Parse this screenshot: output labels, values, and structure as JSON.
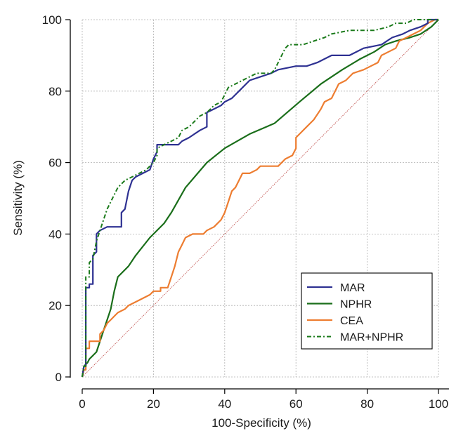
{
  "chart_data": {
    "type": "line",
    "title": "",
    "xlabel": "100-Specificity (%)",
    "ylabel": "Sensitivity (%)",
    "xlim": [
      0,
      100
    ],
    "ylim": [
      0,
      100
    ],
    "xticks": [
      "0",
      "20",
      "40",
      "60",
      "80",
      "100"
    ],
    "yticks": [
      "0",
      "20",
      "40",
      "60",
      "80",
      "100"
    ],
    "grid": true,
    "legend_position": "bottom-right",
    "reference_line": {
      "from": [
        0,
        0
      ],
      "to": [
        100,
        100
      ],
      "color": "#c0504d",
      "style": "dotted"
    },
    "series": [
      {
        "name": "MAR",
        "color": "#2e3192",
        "style": "step",
        "points": [
          [
            0,
            0
          ],
          [
            0.5,
            3
          ],
          [
            1,
            3
          ],
          [
            1,
            25
          ],
          [
            2,
            25
          ],
          [
            2,
            26
          ],
          [
            3,
            26
          ],
          [
            3,
            34
          ],
          [
            4,
            35
          ],
          [
            4,
            40
          ],
          [
            5,
            41
          ],
          [
            7,
            42
          ],
          [
            11,
            42
          ],
          [
            11,
            46
          ],
          [
            12,
            47
          ],
          [
            13,
            52
          ],
          [
            14,
            55
          ],
          [
            15,
            56
          ],
          [
            17,
            57
          ],
          [
            19,
            58
          ],
          [
            20,
            61
          ],
          [
            21,
            63
          ],
          [
            21,
            65
          ],
          [
            22,
            65
          ],
          [
            27,
            65
          ],
          [
            28,
            66
          ],
          [
            30,
            67
          ],
          [
            33,
            69
          ],
          [
            35,
            70
          ],
          [
            35,
            74
          ],
          [
            37,
            75
          ],
          [
            39,
            76
          ],
          [
            40,
            77
          ],
          [
            42,
            78
          ],
          [
            44,
            80
          ],
          [
            47,
            83
          ],
          [
            50,
            84
          ],
          [
            53,
            85
          ],
          [
            55,
            86
          ],
          [
            60,
            87
          ],
          [
            63,
            87
          ],
          [
            66,
            88
          ],
          [
            70,
            90
          ],
          [
            75,
            90
          ],
          [
            79,
            92
          ],
          [
            84,
            93
          ],
          [
            87,
            95
          ],
          [
            90,
            96
          ],
          [
            92,
            97
          ],
          [
            95,
            98
          ],
          [
            97,
            99
          ],
          [
            97,
            100
          ],
          [
            100,
            100
          ]
        ]
      },
      {
        "name": "NPHR",
        "color": "#1a6e1a",
        "style": "line",
        "points": [
          [
            0,
            0
          ],
          [
            0.5,
            3
          ],
          [
            1.5,
            4
          ],
          [
            2,
            5
          ],
          [
            3,
            6
          ],
          [
            4,
            7
          ],
          [
            5,
            10
          ],
          [
            6,
            13
          ],
          [
            7,
            16
          ],
          [
            8,
            19
          ],
          [
            9,
            24
          ],
          [
            10,
            28
          ],
          [
            13,
            31
          ],
          [
            15,
            34
          ],
          [
            19,
            39
          ],
          [
            23,
            43
          ],
          [
            25,
            46
          ],
          [
            29,
            53
          ],
          [
            35,
            60
          ],
          [
            40,
            64
          ],
          [
            47,
            68
          ],
          [
            54,
            71
          ],
          [
            61,
            77
          ],
          [
            67,
            82
          ],
          [
            73,
            86
          ],
          [
            78,
            89
          ],
          [
            82,
            91
          ],
          [
            85,
            93
          ],
          [
            88,
            94
          ],
          [
            92,
            95
          ],
          [
            95,
            96
          ],
          [
            98,
            98
          ],
          [
            100,
            100
          ]
        ]
      },
      {
        "name": "CEA",
        "color": "#ed7d31",
        "style": "step",
        "points": [
          [
            0,
            0
          ],
          [
            0.5,
            2
          ],
          [
            1,
            2
          ],
          [
            1,
            8
          ],
          [
            2,
            8
          ],
          [
            2,
            10
          ],
          [
            5,
            10
          ],
          [
            5,
            12
          ],
          [
            6,
            13
          ],
          [
            7,
            15
          ],
          [
            8,
            16
          ],
          [
            9,
            17
          ],
          [
            10,
            18
          ],
          [
            12,
            19
          ],
          [
            13,
            20
          ],
          [
            15,
            21
          ],
          [
            17,
            22
          ],
          [
            19,
            23
          ],
          [
            20,
            24
          ],
          [
            22,
            24
          ],
          [
            22,
            25
          ],
          [
            24,
            25
          ],
          [
            25,
            28
          ],
          [
            26,
            31
          ],
          [
            27,
            35
          ],
          [
            28,
            37
          ],
          [
            29,
            39
          ],
          [
            31,
            40
          ],
          [
            34,
            40
          ],
          [
            35,
            41
          ],
          [
            37,
            42
          ],
          [
            39,
            44
          ],
          [
            40,
            46
          ],
          [
            41,
            49
          ],
          [
            42,
            52
          ],
          [
            43,
            53
          ],
          [
            44,
            55
          ],
          [
            45,
            57
          ],
          [
            47,
            57
          ],
          [
            49,
            58
          ],
          [
            50,
            59
          ],
          [
            55,
            59
          ],
          [
            57,
            61
          ],
          [
            59,
            62
          ],
          [
            60,
            64
          ],
          [
            60,
            67
          ],
          [
            61,
            68
          ],
          [
            63,
            70
          ],
          [
            65,
            72
          ],
          [
            67,
            75
          ],
          [
            68,
            77
          ],
          [
            70,
            78
          ],
          [
            71,
            80
          ],
          [
            72,
            82
          ],
          [
            74,
            83
          ],
          [
            76,
            85
          ],
          [
            79,
            86
          ],
          [
            81,
            87
          ],
          [
            83,
            88
          ],
          [
            84,
            90
          ],
          [
            86,
            91
          ],
          [
            88,
            92
          ],
          [
            89,
            94
          ],
          [
            91,
            95
          ],
          [
            93,
            96
          ],
          [
            95,
            97
          ],
          [
            97,
            99
          ],
          [
            99,
            100
          ],
          [
            100,
            100
          ]
        ]
      },
      {
        "name": "MAR+NPHR",
        "color": "#1a7a1a",
        "style": "dash-dot-step",
        "points": [
          [
            0,
            0
          ],
          [
            0.5,
            3
          ],
          [
            1,
            3
          ],
          [
            1,
            28
          ],
          [
            2,
            28
          ],
          [
            2,
            32
          ],
          [
            3,
            33
          ],
          [
            4,
            38
          ],
          [
            5,
            41
          ],
          [
            6,
            44
          ],
          [
            7,
            47
          ],
          [
            8,
            49
          ],
          [
            9,
            51
          ],
          [
            10,
            53
          ],
          [
            11,
            54
          ],
          [
            12,
            55
          ],
          [
            14,
            56
          ],
          [
            16,
            57
          ],
          [
            18,
            58
          ],
          [
            19,
            59
          ],
          [
            20,
            60
          ],
          [
            21,
            62
          ],
          [
            21,
            64
          ],
          [
            23,
            65
          ],
          [
            25,
            66
          ],
          [
            27,
            67
          ],
          [
            28,
            69
          ],
          [
            30,
            70
          ],
          [
            31,
            71
          ],
          [
            33,
            73
          ],
          [
            35,
            74
          ],
          [
            36,
            75
          ],
          [
            37,
            76
          ],
          [
            39,
            77
          ],
          [
            40,
            79
          ],
          [
            41,
            81
          ],
          [
            43,
            82
          ],
          [
            45,
            83
          ],
          [
            47,
            84
          ],
          [
            49,
            85
          ],
          [
            53,
            85
          ],
          [
            54,
            86
          ],
          [
            55,
            88
          ],
          [
            56,
            90
          ],
          [
            57,
            92
          ],
          [
            58,
            93
          ],
          [
            62,
            93
          ],
          [
            65,
            94
          ],
          [
            68,
            95
          ],
          [
            70,
            96
          ],
          [
            75,
            97
          ],
          [
            82,
            97
          ],
          [
            86,
            98
          ],
          [
            88,
            99
          ],
          [
            91,
            99
          ],
          [
            93,
            100
          ],
          [
            100,
            100
          ]
        ]
      }
    ]
  }
}
